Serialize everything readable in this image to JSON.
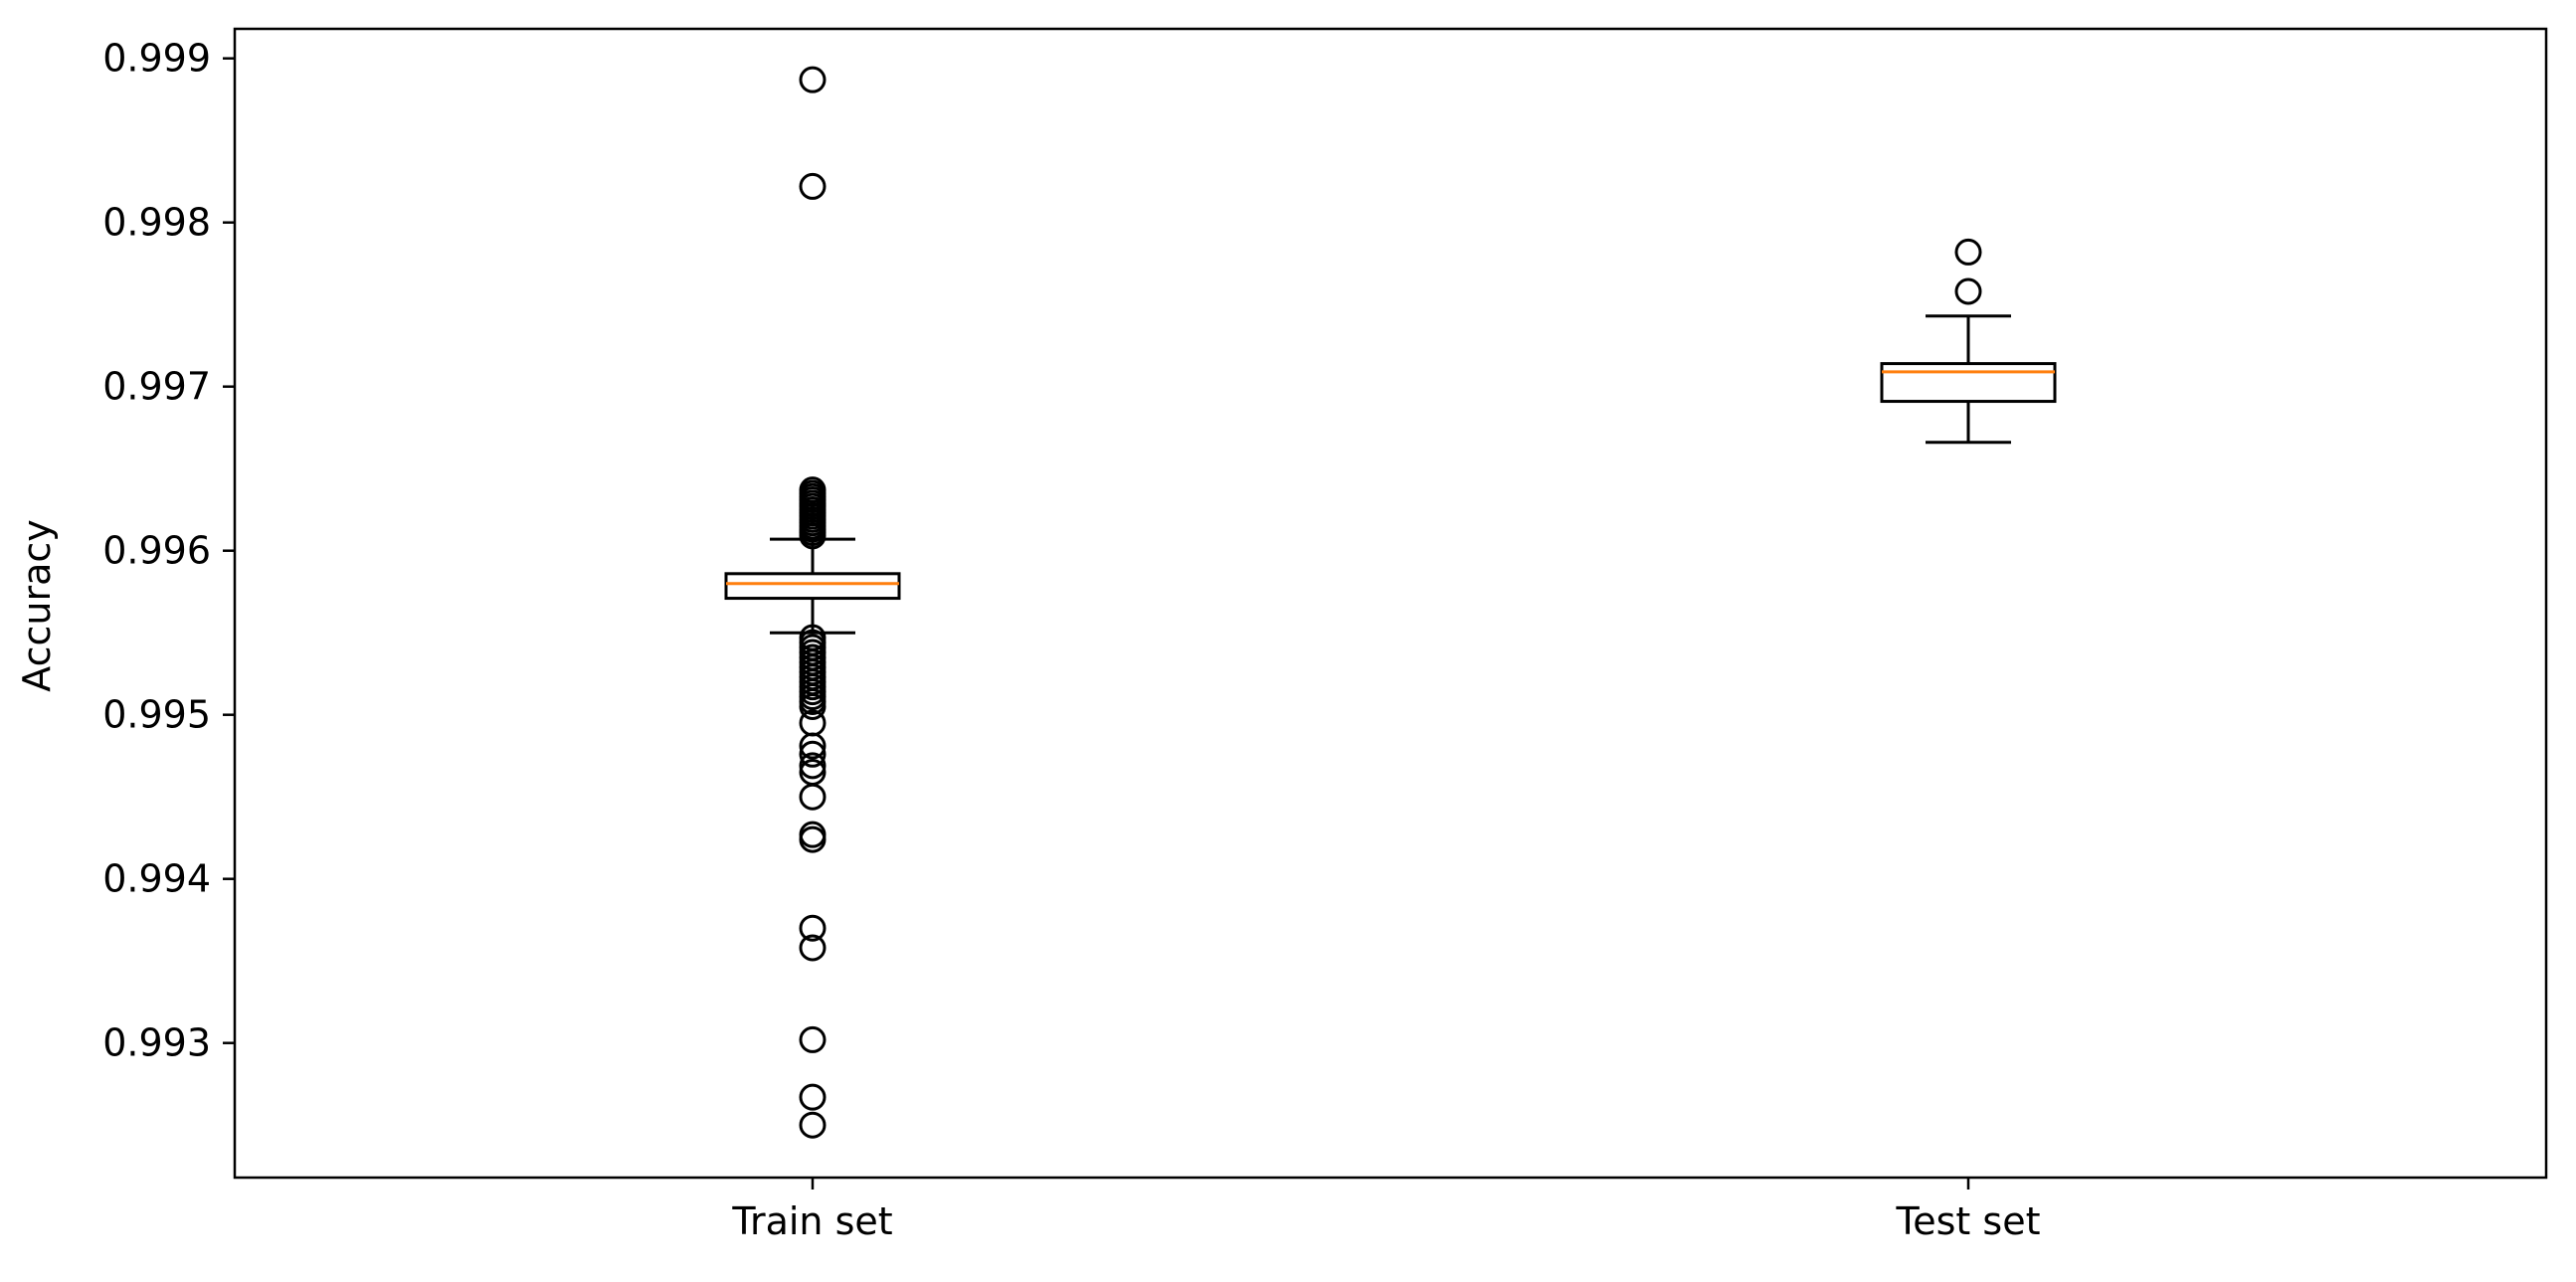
{
  "chart_data": {
    "type": "boxplot",
    "title": "",
    "xlabel": "",
    "ylabel": "Accuracy",
    "ylim": [
      0.99218,
      0.99918
    ],
    "yticks": [
      0.993,
      0.994,
      0.995,
      0.996,
      0.997,
      0.998,
      0.999
    ],
    "ytick_labels": [
      "0.993",
      "0.994",
      "0.995",
      "0.996",
      "0.997",
      "0.998",
      "0.999"
    ],
    "categories": [
      "Train set",
      "Test set"
    ],
    "grid": false,
    "boxes": [
      {
        "category": "Train set",
        "whisker_low": 0.9955,
        "q1": 0.99571,
        "median": 0.9958,
        "q3": 0.99586,
        "whisker_high": 0.99607,
        "outliers": [
          0.99887,
          0.99822,
          0.99637,
          0.99635,
          0.99633,
          0.99631,
          0.99629,
          0.99627,
          0.99625,
          0.99623,
          0.99621,
          0.99619,
          0.99617,
          0.99615,
          0.99613,
          0.99611,
          0.99609,
          0.99547,
          0.99544,
          0.99541,
          0.99538,
          0.99535,
          0.99532,
          0.99529,
          0.99526,
          0.99523,
          0.9952,
          0.99517,
          0.99514,
          0.99511,
          0.99508,
          0.99505,
          0.99495,
          0.99481,
          0.99476,
          0.99469,
          0.99465,
          0.9945,
          0.99427,
          0.99424,
          0.9937,
          0.99358,
          0.99302,
          0.99267,
          0.9925
        ]
      },
      {
        "category": "Test set",
        "whisker_low": 0.99666,
        "q1": 0.99691,
        "median": 0.99709,
        "q3": 0.99714,
        "whisker_high": 0.99743,
        "outliers": [
          0.99782,
          0.99758
        ]
      }
    ],
    "colors": {
      "median": "#ff7f0e",
      "box": "#000000",
      "outlier_edge": "#000000"
    }
  }
}
